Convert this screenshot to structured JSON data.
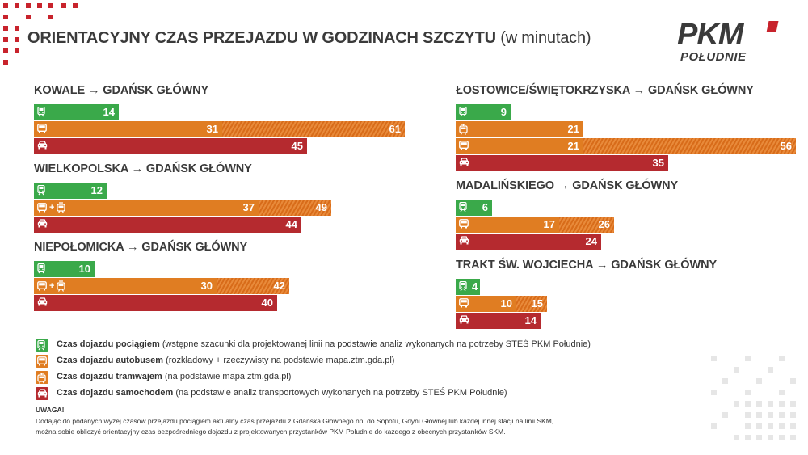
{
  "title": {
    "main": "ORIENTACYJNY CZAS PRZEJAZDU W GODZINACH SZCZYTU",
    "sub": "(w minutach)"
  },
  "logo": {
    "brand": "PKM",
    "subtitle": "POŁUDNIE"
  },
  "colors": {
    "train": "#3aa94a",
    "bus": "#e07d22",
    "tram": "#e07d22",
    "car": "#b52a2f",
    "accent": "#c8232c"
  },
  "chart_data": [
    {
      "type": "bar",
      "title": "KOWALE → GDAŃSK GŁÓWNY",
      "rows": [
        {
          "mode": "train",
          "value": 14
        },
        {
          "mode": "bus",
          "value": 31,
          "max": 61
        },
        {
          "mode": "car",
          "value": 45
        }
      ]
    },
    {
      "type": "bar",
      "title": "WIELKOPOLSKA → GDAŃSK GŁÓWNY",
      "rows": [
        {
          "mode": "train",
          "value": 12
        },
        {
          "mode": "bus+tram",
          "value": 37,
          "max": 49
        },
        {
          "mode": "car",
          "value": 44
        }
      ]
    },
    {
      "type": "bar",
      "title": "NIEPOŁOMICKA → GDAŃSK GŁÓWNY",
      "rows": [
        {
          "mode": "train",
          "value": 10
        },
        {
          "mode": "bus+tram",
          "value": 30,
          "max": 42
        },
        {
          "mode": "car",
          "value": 40
        }
      ]
    },
    {
      "type": "bar",
      "title": "ŁOSTOWICE/ŚWIĘTOKRZYSKA → GDAŃSK GŁÓWNY",
      "rows": [
        {
          "mode": "train",
          "value": 9
        },
        {
          "mode": "tram",
          "value": 21
        },
        {
          "mode": "bus",
          "value": 21,
          "max": 56
        },
        {
          "mode": "car",
          "value": 35
        }
      ]
    },
    {
      "type": "bar",
      "title": "MADALIŃSKIEGO → GDAŃSK GŁÓWNY",
      "rows": [
        {
          "mode": "train",
          "value": 6
        },
        {
          "mode": "bus",
          "value": 17,
          "max": 26
        },
        {
          "mode": "car",
          "value": 24
        }
      ]
    },
    {
      "type": "bar",
      "title": "TRAKT ŚW. WOJCIECHA → GDAŃSK GŁÓWNY",
      "rows": [
        {
          "mode": "train",
          "value": 4
        },
        {
          "mode": "bus",
          "value": 10,
          "max": 15
        },
        {
          "mode": "car",
          "value": 14
        }
      ]
    }
  ],
  "legend": [
    {
      "mode": "train",
      "bold": "Czas dojazdu pociągiem",
      "rest": "(wstępne szacunki dla projektowanej linii na podstawie analiz wykonanych na potrzeby STEŚ PKM Południe)"
    },
    {
      "mode": "bus",
      "bold": "Czas dojazdu autobusem",
      "rest": "(rozkładowy + rzeczywisty na podstawie mapa.ztm.gda.pl)"
    },
    {
      "mode": "tram",
      "bold": "Czas dojazdu tramwajem",
      "rest": "(na podstawie mapa.ztm.gda.pl)"
    },
    {
      "mode": "car",
      "bold": "Czas dojazdu samochodem",
      "rest": "(na podstawie analiz transportowych wykonanych na potrzeby STEŚ PKM Południe)"
    }
  ],
  "note": {
    "title": "UWAGA!",
    "lines": [
      "Dodając do podanych wyżej czasów przejazdu pociągiem aktualny czas przejazdu z Gdańska Głównego np. do Sopotu, Gdyni Głównej lub każdej innej stacji na linii SKM,",
      "można sobie obliczyć orientacyjny czas bezpośredniego dojazdu z projektowanych przystanków PKM Południe do każdego z obecnych przystanków SKM."
    ]
  }
}
